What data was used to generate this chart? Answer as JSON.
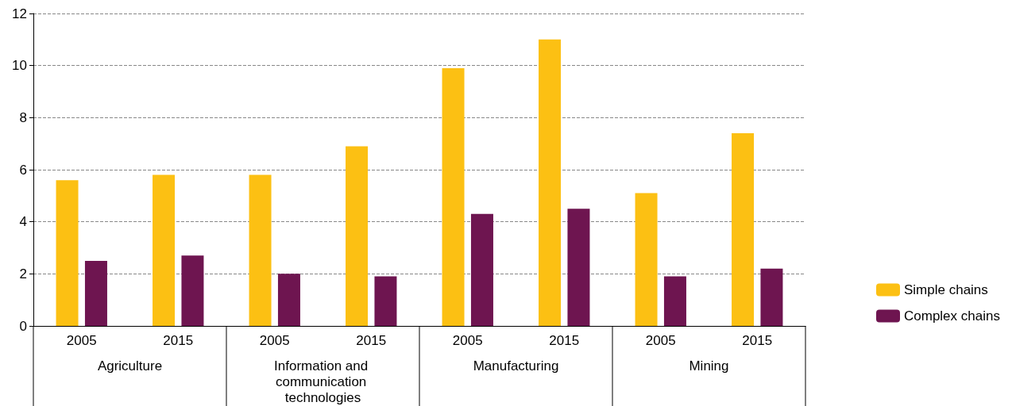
{
  "chart_data": {
    "type": "bar",
    "categories": [
      "2005",
      "2015",
      "2005",
      "2015",
      "2005",
      "2015",
      "2005",
      "2015"
    ],
    "series": [
      {
        "name": "Simple chains",
        "color": "#fcc013",
        "values": [
          5.6,
          5.8,
          5.8,
          6.9,
          9.9,
          11.0,
          5.1,
          7.4
        ]
      },
      {
        "name": "Complex chains",
        "color": "#6e1550",
        "values": [
          2.5,
          2.7,
          2.0,
          1.9,
          4.3,
          4.5,
          1.9,
          2.2
        ]
      }
    ],
    "annotations": [
      "Agriculture",
      "Information and communication technologies",
      "Manufacturing",
      "Mining"
    ],
    "ylim": [
      0,
      12
    ],
    "yticks": [
      0,
      2,
      4,
      6,
      8,
      10,
      12
    ],
    "grid": "y",
    "legend": "right"
  }
}
